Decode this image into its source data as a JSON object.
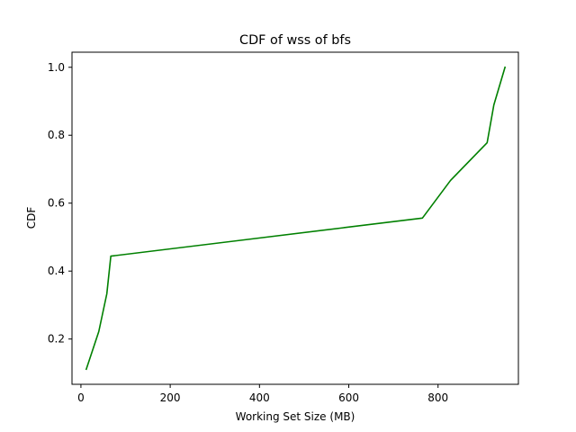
{
  "chart_data": {
    "type": "line",
    "title": "CDF of wss of bfs",
    "xlabel": "Working Set Size (MB)",
    "ylabel": "CDF",
    "xlim": [
      -20,
      980
    ],
    "ylim": [
      0.0667,
      1.0444
    ],
    "xticks": [
      0,
      200,
      400,
      600,
      800
    ],
    "yticks": [
      0.2,
      0.4,
      0.6,
      0.8,
      1.0
    ],
    "xtick_labels": [
      "0",
      "200",
      "400",
      "600",
      "800"
    ],
    "ytick_labels": [
      "0.2",
      "0.4",
      "0.6",
      "0.8",
      "1.0"
    ],
    "grid": false,
    "line_color": "#008000",
    "series": [
      {
        "x": [
          12,
          40,
          58,
          67,
          765,
          828,
          910,
          925,
          950
        ],
        "y": [
          0.111,
          0.222,
          0.333,
          0.444,
          0.556,
          0.667,
          0.778,
          0.889,
          1.0
        ]
      }
    ]
  }
}
